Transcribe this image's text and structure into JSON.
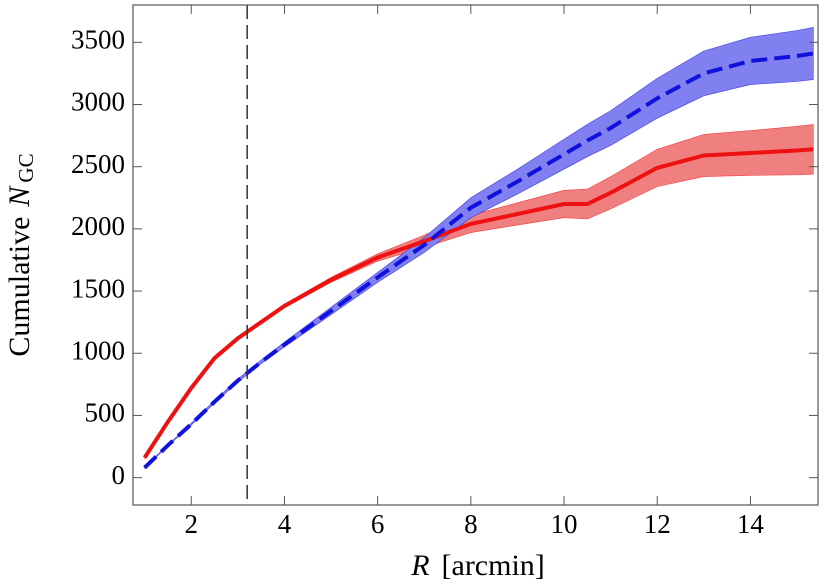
{
  "chart_data": {
    "type": "line",
    "x_label": {
      "var": "R",
      "text": "[arcmin]"
    },
    "y_label": {
      "text": "Cumulative",
      "var": "N",
      "sub": "GC"
    },
    "x": [
      1,
      1.5,
      2,
      2.5,
      3,
      3.5,
      4,
      5,
      6,
      7,
      8,
      9,
      10,
      10.5,
      11,
      12,
      13,
      14,
      15,
      15.35
    ],
    "series": [
      {
        "color": "#ee1111",
        "band_color": "#f08080",
        "dash": false,
        "values": [
          160,
          450,
          720,
          960,
          1120,
          1250,
          1380,
          1590,
          1770,
          1900,
          2040,
          2120,
          2200,
          2200,
          2290,
          2490,
          2590,
          2610,
          2630,
          2640
        ],
        "lower": [
          155,
          445,
          715,
          955,
          1110,
          1240,
          1365,
          1570,
          1740,
          1850,
          1970,
          2030,
          2090,
          2080,
          2160,
          2340,
          2420,
          2430,
          2435,
          2440
        ],
        "upper": [
          165,
          455,
          725,
          965,
          1130,
          1260,
          1395,
          1610,
          1800,
          1950,
          2110,
          2210,
          2310,
          2320,
          2420,
          2640,
          2760,
          2790,
          2825,
          2840
        ]
      },
      {
        "color": "#1111dd",
        "band_color": "#8080f0",
        "dash": true,
        "values": [
          80,
          260,
          430,
          610,
          780,
          930,
          1070,
          1340,
          1610,
          1870,
          2170,
          2380,
          2600,
          2710,
          2810,
          3050,
          3250,
          3350,
          3390,
          3410
        ],
        "lower": [
          75,
          255,
          422,
          600,
          768,
          915,
          1050,
          1310,
          1570,
          1810,
          2090,
          2280,
          2480,
          2580,
          2670,
          2890,
          3070,
          3160,
          3185,
          3200
        ],
        "upper": [
          85,
          265,
          438,
          620,
          792,
          945,
          1090,
          1370,
          1650,
          1930,
          2250,
          2480,
          2720,
          2840,
          2950,
          3210,
          3430,
          3540,
          3595,
          3620
        ]
      }
    ],
    "vline": 3.2,
    "xlim": [
      0.75,
      15.45
    ],
    "ylim": [
      -220,
      3800
    ],
    "xticks": [
      2,
      4,
      6,
      8,
      10,
      12,
      14
    ],
    "yticks": [
      0,
      500,
      1000,
      1500,
      2000,
      2500,
      3000,
      3500
    ]
  }
}
